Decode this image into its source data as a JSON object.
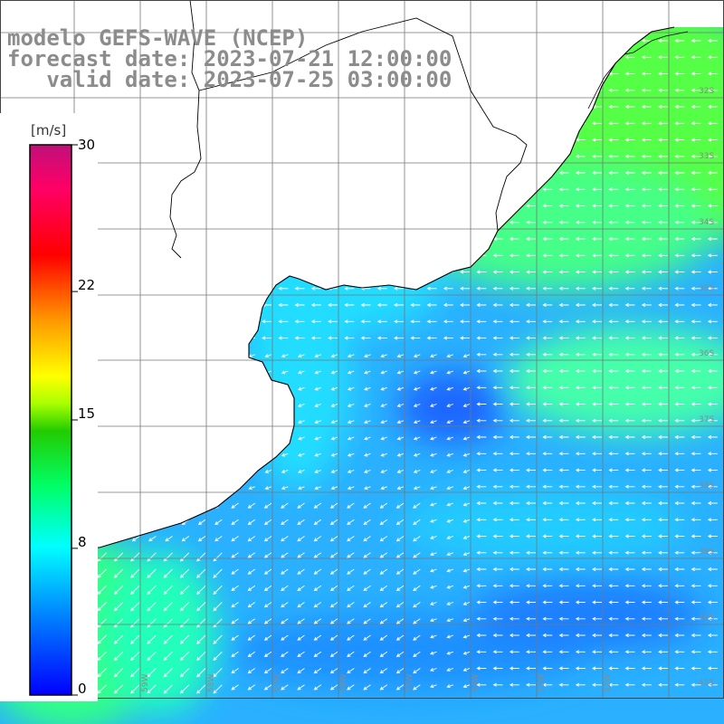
{
  "header": {
    "model_line": "modelo GEFS-WAVE (NCEP)",
    "forecast_line": "forecast date: 2023-07-21 12:00:00",
    "valid_line": "   valid date: 2023-07-25 03:00:00"
  },
  "colorbar": {
    "unit": "[m/s]",
    "min": 0,
    "max": 30,
    "tick_labels": [
      "30",
      "22",
      "15",
      "8",
      "0"
    ],
    "tick_values": [
      30,
      22,
      15,
      8,
      0
    ],
    "gradient_colors": [
      "#0000ff",
      "#00aaff",
      "#00ffff",
      "#00ff66",
      "#22cc00",
      "#88ff00",
      "#ffff00",
      "#ff9900",
      "#ff0000",
      "#ff0066",
      "#cc0066"
    ]
  },
  "map": {
    "variable": "wind speed and direction",
    "lat_labels": [
      "32S",
      "33S",
      "34S",
      "35S",
      "36S",
      "37S",
      "38S",
      "39S",
      "40S",
      "41S"
    ],
    "lon_labels": [
      "60W",
      "59W",
      "58W",
      "57W",
      "56W",
      "55W",
      "54W",
      "53W",
      "52W"
    ],
    "land_color": "#ffffff",
    "wind_regions": {
      "offshore_south_uruguay_brazil": "light green (~12 m/s)",
      "rio_de_la_plata": "cyan (~8 m/s)",
      "central_sea": "light blue (~5 m/s)",
      "southwest_corner": "green (~11 m/s)"
    },
    "arrow_color": "#ffffff"
  }
}
